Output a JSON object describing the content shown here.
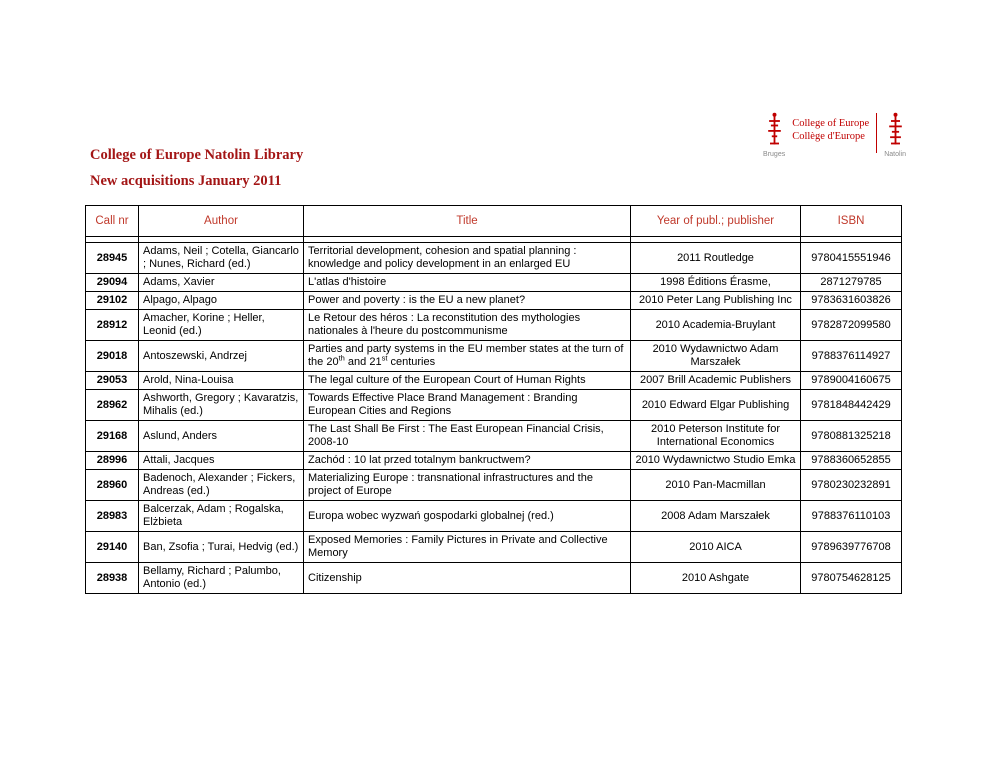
{
  "page": {
    "title_line1": "College of Europe Natolin Library",
    "title_line2": "New acquisitions January 2011"
  },
  "logo": {
    "name_en": "College of Europe",
    "name_fr": "Collège d'Europe",
    "campus_bruges": "Bruges",
    "campus_natolin": "Natolin"
  },
  "colors": {
    "heading_red": "#a31515",
    "table_header_red": "#c0392b",
    "logo_red": "#c00000"
  },
  "table": {
    "headers": [
      "Call nr",
      "Author",
      "Title",
      "Year of publ.; publisher",
      "ISBN"
    ],
    "rows": [
      {
        "call_nr": "28945",
        "author": "Adams, Neil ; Cotella, Giancarlo ; Nunes, Richard (ed.)",
        "title": "Territorial development, cohesion and spatial planning : knowledge and policy development in an enlarged EU",
        "year_publisher": "2011 Routledge",
        "isbn": "9780415551946"
      },
      {
        "call_nr": "29094",
        "author": "Adams, Xavier",
        "title": "L'atlas d'histoire",
        "year_publisher": "1998 Éditions Érasme,",
        "isbn": "2871279785"
      },
      {
        "call_nr": "29102",
        "author": "Alpago, Alpago",
        "title": "Power and poverty : is the EU a new planet?",
        "year_publisher": "2010 Peter Lang Publishing Inc",
        "isbn": "9783631603826"
      },
      {
        "call_nr": "28912",
        "author": "Amacher, Korine ; Heller, Leonid (ed.)",
        "title": "Le Retour des héros : La reconstitution des mythologies nationales à l'heure du postcommunisme",
        "year_publisher": "2010 Academia-Bruylant",
        "isbn": "9782872099580"
      },
      {
        "call_nr": "29018",
        "author": "Antoszewski, Andrzej",
        "title": "Parties and party systems in the EU member states at the turn of the 20th and 21st centuries",
        "title_html": "Parties and party systems in the EU member states at the turn of the 20<sup>th</sup> and 21<sup>st</sup> centuries",
        "year_publisher": "2010 Wydawnictwo Adam Marszałek",
        "isbn": "9788376114927"
      },
      {
        "call_nr": "29053",
        "author": "Arold, Nina-Louisa",
        "title": "The legal culture of the European Court of Human Rights",
        "year_publisher": "2007 Brill Academic Publishers",
        "isbn": "9789004160675"
      },
      {
        "call_nr": "28962",
        "author": "Ashworth, Gregory ; Kavaratzis, Mihalis (ed.)",
        "title": "Towards Effective Place Brand Management : Branding European Cities and Regions",
        "year_publisher": "2010 Edward Elgar Publishing",
        "isbn": "9781848442429"
      },
      {
        "call_nr": "29168",
        "author": "Aslund, Anders",
        "title": "The Last Shall Be First : The East European Financial Crisis, 2008-10",
        "year_publisher": "2010 Peterson Institute for International Economics",
        "isbn": "9780881325218"
      },
      {
        "call_nr": "28996",
        "author": "Attali, Jacques",
        "title": "Zachód : 10 lat przed totalnym bankructwem?",
        "year_publisher": "2010 Wydawnictwo Studio Emka",
        "isbn": "9788360652855"
      },
      {
        "call_nr": "28960",
        "author": "Badenoch, Alexander ; Fickers, Andreas (ed.)",
        "title": "Materializing Europe : transnational infrastructures and the project of Europe",
        "year_publisher": "2010 Pan-Macmillan",
        "isbn": "9780230232891"
      },
      {
        "call_nr": "28983",
        "author": "Balcerzak, Adam ; Rogalska, Elżbieta",
        "title": "Europa wobec wyzwań gospodarki globalnej (red.)",
        "year_publisher": "2008 Adam Marszałek",
        "isbn": "9788376110103"
      },
      {
        "call_nr": "29140",
        "author": "Ban, Zsofia ; Turai, Hedvig (ed.)",
        "title": "Exposed Memories : Family Pictures in Private and Collective Memory",
        "year_publisher": "2010 AICA",
        "isbn": "9789639776708"
      },
      {
        "call_nr": "28938",
        "author": "Bellamy, Richard ; Palumbo, Antonio (ed.)",
        "title": "Citizenship",
        "year_publisher": "2010 Ashgate",
        "isbn": "9780754628125"
      }
    ]
  }
}
